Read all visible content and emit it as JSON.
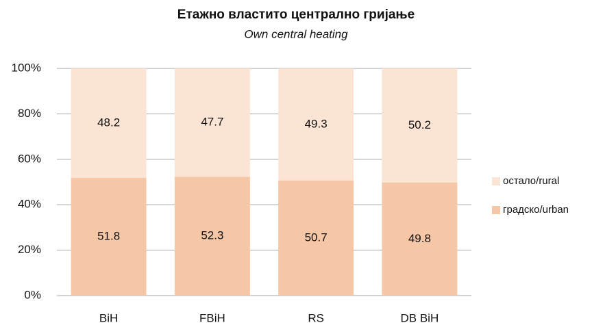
{
  "chart_data": {
    "type": "stacked_bar",
    "title": "Етажно властито централно гријање",
    "subtitle": "Own central heating",
    "categories": [
      "BiH",
      "FBiH",
      "RS",
      "DB BiH"
    ],
    "series": [
      {
        "name": "градско/urban",
        "color": "#f6c7a6",
        "values": [
          51.8,
          52.3,
          50.7,
          49.8
        ]
      },
      {
        "name": "остало/rural",
        "color": "#fbe4d4",
        "values": [
          48.2,
          47.7,
          49.3,
          50.2
        ]
      }
    ],
    "ylim": [
      0,
      100
    ],
    "yticks": [
      {
        "value": 0,
        "label": "0%"
      },
      {
        "value": 20,
        "label": "20%"
      },
      {
        "value": 40,
        "label": "40%"
      },
      {
        "value": 60,
        "label": "60%"
      },
      {
        "value": 80,
        "label": "80%"
      },
      {
        "value": 100,
        "label": "100%"
      }
    ],
    "grid": true,
    "legend": "right"
  }
}
